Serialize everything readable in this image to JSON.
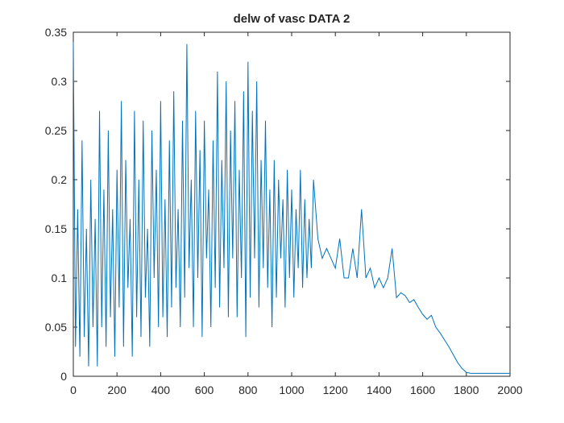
{
  "chart_data": {
    "type": "line",
    "title": "delw of vasc DATA 2",
    "x": [
      0,
      10,
      20,
      30,
      40,
      50,
      60,
      70,
      80,
      90,
      100,
      110,
      120,
      130,
      140,
      150,
      160,
      170,
      180,
      190,
      200,
      210,
      220,
      230,
      240,
      250,
      260,
      270,
      280,
      290,
      300,
      310,
      320,
      330,
      340,
      350,
      360,
      370,
      380,
      390,
      400,
      410,
      420,
      430,
      440,
      450,
      460,
      470,
      480,
      490,
      500,
      510,
      520,
      530,
      540,
      550,
      560,
      570,
      580,
      590,
      600,
      610,
      620,
      630,
      640,
      650,
      660,
      670,
      680,
      690,
      700,
      710,
      720,
      730,
      740,
      750,
      760,
      770,
      780,
      790,
      800,
      810,
      820,
      830,
      840,
      850,
      860,
      870,
      880,
      890,
      900,
      910,
      920,
      930,
      940,
      950,
      960,
      970,
      980,
      990,
      1000,
      1010,
      1020,
      1030,
      1040,
      1050,
      1060,
      1070,
      1080,
      1090,
      1100,
      1120,
      1140,
      1160,
      1180,
      1200,
      1220,
      1240,
      1260,
      1280,
      1300,
      1320,
      1340,
      1360,
      1380,
      1400,
      1420,
      1440,
      1460,
      1480,
      1500,
      1520,
      1540,
      1560,
      1580,
      1600,
      1620,
      1640,
      1660,
      1680,
      1700,
      1720,
      1740,
      1760,
      1780,
      1800,
      1820,
      1840,
      1860,
      1880,
      1900,
      1920,
      1940,
      1960,
      1980,
      2000
    ],
    "series": [
      {
        "color": "#0072bd",
        "values": [
          0.34,
          0.03,
          0.17,
          0.02,
          0.24,
          0.04,
          0.15,
          0.01,
          0.2,
          0.05,
          0.16,
          0.01,
          0.27,
          0.05,
          0.19,
          0.03,
          0.25,
          0.06,
          0.17,
          0.02,
          0.21,
          0.07,
          0.28,
          0.03,
          0.22,
          0.09,
          0.16,
          0.02,
          0.27,
          0.06,
          0.2,
          0.04,
          0.26,
          0.08,
          0.15,
          0.03,
          0.25,
          0.1,
          0.21,
          0.05,
          0.28,
          0.06,
          0.18,
          0.04,
          0.24,
          0.07,
          0.29,
          0.09,
          0.17,
          0.05,
          0.26,
          0.08,
          0.338,
          0.11,
          0.2,
          0.05,
          0.27,
          0.1,
          0.23,
          0.04,
          0.26,
          0.12,
          0.19,
          0.05,
          0.24,
          0.09,
          0.31,
          0.07,
          0.22,
          0.11,
          0.3,
          0.06,
          0.25,
          0.12,
          0.28,
          0.06,
          0.21,
          0.1,
          0.29,
          0.04,
          0.32,
          0.08,
          0.27,
          0.12,
          0.3,
          0.07,
          0.22,
          0.11,
          0.26,
          0.09,
          0.19,
          0.05,
          0.22,
          0.08,
          0.2,
          0.12,
          0.18,
          0.07,
          0.21,
          0.1,
          0.19,
          0.08,
          0.17,
          0.11,
          0.21,
          0.09,
          0.18,
          0.1,
          0.16,
          0.11,
          0.2,
          0.14,
          0.12,
          0.13,
          0.12,
          0.11,
          0.14,
          0.1,
          0.1,
          0.13,
          0.1,
          0.17,
          0.1,
          0.11,
          0.09,
          0.1,
          0.09,
          0.1,
          0.13,
          0.08,
          0.085,
          0.082,
          0.075,
          0.078,
          0.07,
          0.063,
          0.058,
          0.062,
          0.05,
          0.044,
          0.037,
          0.03,
          0.022,
          0.014,
          0.008,
          0.004,
          0.003,
          0.003,
          0.003,
          0.003,
          0.003,
          0.003,
          0.003,
          0.003,
          0.003,
          0.003
        ]
      }
    ],
    "xlim": [
      0,
      2000
    ],
    "xticks": [
      0,
      200,
      400,
      600,
      800,
      1000,
      1200,
      1400,
      1600,
      1800,
      2000
    ],
    "ylim": [
      0,
      0.35
    ],
    "yticks": [
      0,
      0.05,
      0.1,
      0.15,
      0.2,
      0.25,
      0.3,
      0.35
    ]
  }
}
